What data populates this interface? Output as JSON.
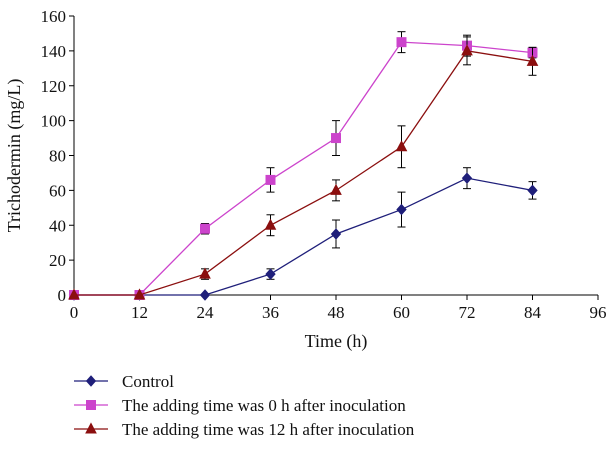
{
  "chart_data": {
    "type": "line",
    "title": "",
    "xlabel": "Time (h)",
    "ylabel": "Trichodermin (mg/L)",
    "xlim": [
      0,
      96
    ],
    "ylim": [
      0,
      160
    ],
    "x_ticks": [
      "0",
      "12",
      "24",
      "36",
      "48",
      "60",
      "72",
      "84",
      "96"
    ],
    "y_ticks": [
      "0",
      "20",
      "40",
      "60",
      "80",
      "100",
      "120",
      "140",
      "160"
    ],
    "x": [
      0,
      12,
      24,
      36,
      48,
      60,
      72,
      84
    ],
    "grid": false,
    "legend_position": "bottom",
    "series": [
      {
        "name": "Control",
        "color": "#1f1f7a",
        "marker": "diamond",
        "values": [
          0,
          0,
          0,
          12,
          35,
          49,
          67,
          60
        ],
        "errors": [
          0,
          0,
          0,
          3,
          8,
          10,
          6,
          5
        ]
      },
      {
        "name": "The adding time was 0 h after inoculation",
        "color": "#cc44cc",
        "marker": "square",
        "values": [
          0,
          0,
          38,
          66,
          90,
          145,
          143,
          139
        ],
        "errors": [
          0,
          0,
          3,
          7,
          10,
          6,
          6,
          3
        ]
      },
      {
        "name": "The adding time was 12 h after inoculation",
        "color": "#8b0f0f",
        "marker": "triangle",
        "values": [
          0,
          0,
          12,
          40,
          60,
          85,
          140,
          134
        ],
        "errors": [
          0,
          0,
          3,
          6,
          6,
          12,
          8,
          8
        ]
      }
    ]
  }
}
